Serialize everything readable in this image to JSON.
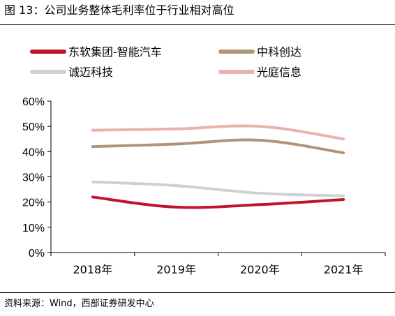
{
  "header": {
    "title": "图 13：公司业务整体毛利率位于行业相对高位"
  },
  "footer": {
    "source": "资料来源：Wind，西部证券研发中心"
  },
  "chart_data": {
    "type": "line",
    "title": "",
    "xlabel": "",
    "ylabel": "",
    "categories": [
      "2018年",
      "2019年",
      "2020年",
      "2021年"
    ],
    "ylim": [
      0,
      60
    ],
    "y_ticks": [
      "0%",
      "10%",
      "20%",
      "30%",
      "40%",
      "50%",
      "60%"
    ],
    "y_unit": "%",
    "grid": false,
    "legend_position": "top",
    "smooth": true,
    "series": [
      {
        "name": "东软集团-智能汽车",
        "color": "#c0142a",
        "values": [
          22,
          18,
          19,
          21
        ]
      },
      {
        "name": "中科创达",
        "color": "#b09478",
        "values": [
          42,
          43,
          44.5,
          39.5
        ]
      },
      {
        "name": "诚迈科技",
        "color": "#d0d0d0",
        "values": [
          28,
          26.5,
          23.5,
          22.5
        ]
      },
      {
        "name": "光庭信息",
        "color": "#eab2ac",
        "values": [
          48.5,
          49,
          50,
          45
        ]
      }
    ]
  }
}
